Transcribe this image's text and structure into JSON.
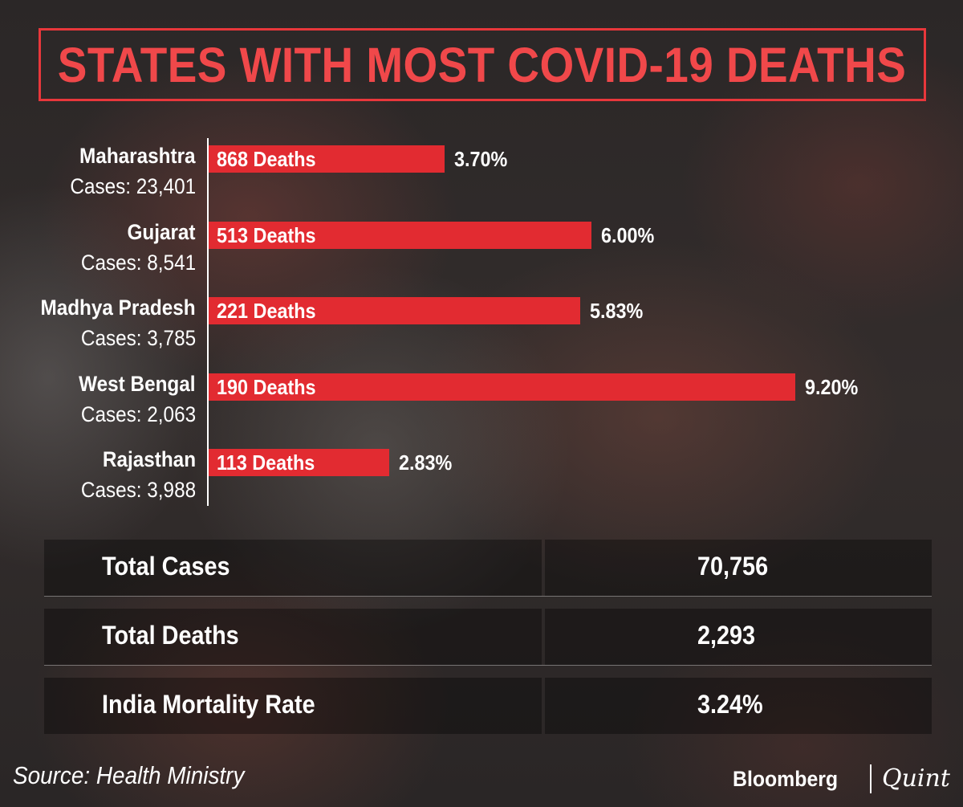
{
  "title": "STATES WITH MOST COVID-19 DEATHS",
  "chart_data": {
    "type": "bar",
    "orientation": "horizontal",
    "title": "STATES WITH MOST COVID-19 DEATHS",
    "xlim": [
      0,
      10.0
    ],
    "bar_color": "#e22b31",
    "categories": [
      "Maharashtra",
      "Gujarat",
      "Madhya Pradesh",
      "West Bengal",
      "Rajasthan"
    ],
    "items": [
      {
        "state": "Maharashtra",
        "cases_label": "Cases: 23,401",
        "deaths_label": "868 Deaths",
        "rate_label": "3.70%",
        "rate": 3.7,
        "deaths": 868,
        "cases": 23401
      },
      {
        "state": "Gujarat",
        "cases_label": "Cases: 8,541",
        "deaths_label": "513 Deaths",
        "rate_label": "6.00%",
        "rate": 6.0,
        "deaths": 513,
        "cases": 8541
      },
      {
        "state": "Madhya Pradesh",
        "cases_label": "Cases: 3,785",
        "deaths_label": "221 Deaths",
        "rate_label": "5.83%",
        "rate": 5.83,
        "deaths": 221,
        "cases": 3785
      },
      {
        "state": "West Bengal",
        "cases_label": "Cases: 2,063",
        "deaths_label": "190 Deaths",
        "rate_label": "9.20%",
        "rate": 9.2,
        "deaths": 190,
        "cases": 2063
      },
      {
        "state": "Rajasthan",
        "cases_label": "Cases: 3,988",
        "deaths_label": "113 Deaths",
        "rate_label": "2.83%",
        "rate": 2.83,
        "deaths": 113,
        "cases": 3988
      }
    ]
  },
  "summary": [
    {
      "label": "Total Cases",
      "value": "70,756"
    },
    {
      "label": "Total Deaths",
      "value": "2,293"
    },
    {
      "label": "India Mortality Rate",
      "value": "3.24%"
    }
  ],
  "source": "Source: Health Ministry",
  "logo": {
    "left": "Bloomberg",
    "right": "Quint"
  },
  "colors": {
    "accent": "#e8373b",
    "title": "#f0484a",
    "text": "#ffffff"
  }
}
